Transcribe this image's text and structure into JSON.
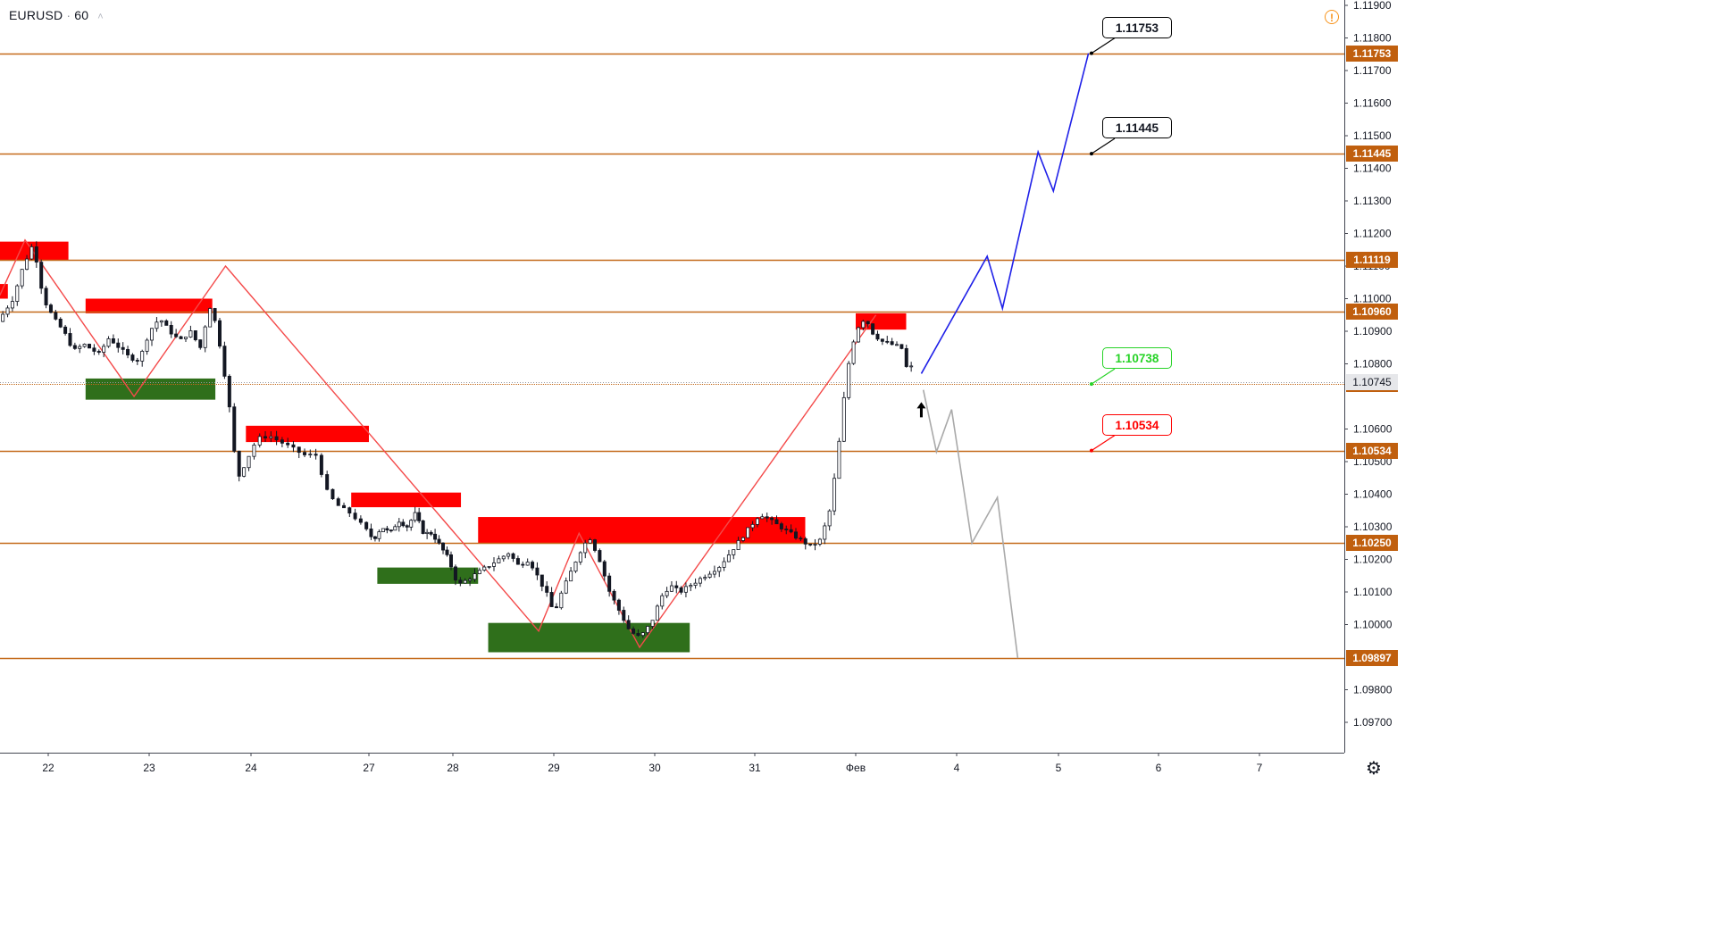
{
  "header": {
    "symbol": "EURUSD",
    "separator": "·",
    "interval": "60",
    "collapse_glyph": "˄"
  },
  "icons": {
    "alert": "alert-circle-icon",
    "settings": "gear-icon"
  },
  "colors": {
    "level_line": "#c46a1a",
    "level_tag_bg": "#c05f0e",
    "supply_zone": "#ff0000",
    "demand_zone": "#2f6f1b",
    "zigzag": "#f44a4a",
    "bull_projection": "#1f20e8",
    "bear_projection": "#a9a9a9",
    "candle": "#131722"
  },
  "chart_data": {
    "type": "candlestick",
    "symbol": "EURUSD",
    "interval": "60",
    "y_axis": {
      "range": [
        1.09665,
        1.11915
      ],
      "ticks": [
        "1.11900",
        "1.11800",
        "1.11700",
        "1.11600",
        "1.11500",
        "1.11400",
        "1.11300",
        "1.11200",
        "1.11100",
        "1.11000",
        "1.10900",
        "1.10800",
        "1.10600",
        "1.10500",
        "1.10400",
        "1.10300",
        "1.10200",
        "1.10100",
        "1.10000",
        "1.09800",
        "1.09700"
      ]
    },
    "x_axis": {
      "ticks": [
        {
          "label": "22",
          "day": 0
        },
        {
          "label": "23",
          "day": 1
        },
        {
          "label": "24",
          "day": 2
        },
        {
          "label": "27",
          "day": 3
        },
        {
          "label": "28",
          "day": 4
        },
        {
          "label": "29",
          "day": 5
        },
        {
          "label": "30",
          "day": 6
        },
        {
          "label": "31",
          "day": 7
        },
        {
          "label": "Фев",
          "day": 8
        },
        {
          "label": "4",
          "day": 9
        },
        {
          "label": "5",
          "day": 10
        },
        {
          "label": "6",
          "day": 11
        },
        {
          "label": "7",
          "day": 12
        }
      ]
    },
    "price_path": [
      [
        -0.45,
        1.1093
      ],
      [
        -0.3,
        1.11
      ],
      [
        -0.2,
        1.111
      ],
      [
        -0.1,
        1.1117
      ],
      [
        0,
        1.11
      ],
      [
        0.1,
        1.1094
      ],
      [
        0.2,
        1.109
      ],
      [
        0.3,
        1.1084
      ],
      [
        0.4,
        1.1086
      ],
      [
        0.55,
        1.1083
      ],
      [
        0.65,
        1.1088
      ],
      [
        0.75,
        1.1085
      ],
      [
        0.85,
        1.1082
      ],
      [
        0.95,
        1.1081
      ],
      [
        1.05,
        1.109
      ],
      [
        1.15,
        1.1094
      ],
      [
        1.25,
        1.109
      ],
      [
        1.35,
        1.1087
      ],
      [
        1.45,
        1.109
      ],
      [
        1.55,
        1.1085
      ],
      [
        1.6,
        1.1092
      ],
      [
        1.65,
        1.1098
      ],
      [
        1.72,
        1.109
      ],
      [
        1.78,
        1.1078
      ],
      [
        1.82,
        1.1072
      ],
      [
        1.86,
        1.1058
      ],
      [
        1.92,
        1.1045
      ],
      [
        2.0,
        1.105
      ],
      [
        2.1,
        1.1057
      ],
      [
        2.2,
        1.1058
      ],
      [
        2.3,
        1.1056
      ],
      [
        2.4,
        1.1054
      ],
      [
        2.5,
        1.1052
      ],
      [
        2.6,
        1.1052
      ],
      [
        2.7,
        1.104
      ],
      [
        2.8,
        1.1036
      ],
      [
        2.9,
        1.1034
      ],
      [
        3.0,
        1.103
      ],
      [
        3.1,
        1.1026
      ],
      [
        3.2,
        1.103
      ],
      [
        3.3,
        1.1028
      ],
      [
        3.4,
        1.1032
      ],
      [
        3.5,
        1.103
      ],
      [
        3.6,
        1.1034
      ],
      [
        3.7,
        1.1028
      ],
      [
        3.8,
        1.1028
      ],
      [
        3.9,
        1.1024
      ],
      [
        4.0,
        1.102
      ],
      [
        4.05,
        1.1016
      ],
      [
        4.1,
        1.1012
      ],
      [
        4.2,
        1.1014
      ],
      [
        4.3,
        1.1016
      ],
      [
        4.4,
        1.1018
      ],
      [
        4.5,
        1.102
      ],
      [
        4.6,
        1.1022
      ],
      [
        4.7,
        1.1018
      ],
      [
        4.8,
        1.102
      ],
      [
        4.9,
        1.1014
      ],
      [
        5.0,
        1.1008
      ],
      [
        5.05,
        1.1003
      ],
      [
        5.1,
        1.1008
      ],
      [
        5.2,
        1.1015
      ],
      [
        5.3,
        1.1022
      ],
      [
        5.4,
        1.1027
      ],
      [
        5.5,
        1.102
      ],
      [
        5.6,
        1.101
      ],
      [
        5.7,
        1.1004
      ],
      [
        5.8,
        1.0998
      ],
      [
        5.9,
        1.0996
      ],
      [
        6.0,
        1.1
      ],
      [
        6.05,
        1.1003
      ],
      [
        6.1,
        1.1008
      ],
      [
        6.2,
        1.1012
      ],
      [
        6.3,
        1.101
      ],
      [
        6.4,
        1.1012
      ],
      [
        6.5,
        1.1014
      ],
      [
        6.6,
        1.1016
      ],
      [
        6.7,
        1.1018
      ],
      [
        6.8,
        1.1022
      ],
      [
        6.9,
        1.1026
      ],
      [
        7.0,
        1.103
      ],
      [
        7.1,
        1.1034
      ],
      [
        7.2,
        1.1032
      ],
      [
        7.3,
        1.103
      ],
      [
        7.4,
        1.1028
      ],
      [
        7.5,
        1.1026
      ],
      [
        7.6,
        1.1024
      ],
      [
        7.7,
        1.1026
      ],
      [
        7.8,
        1.1036
      ],
      [
        7.85,
        1.1048
      ],
      [
        7.9,
        1.106
      ],
      [
        7.95,
        1.1075
      ],
      [
        8.0,
        1.1084
      ],
      [
        8.05,
        1.109
      ],
      [
        8.1,
        1.1093
      ],
      [
        8.15,
        1.1094
      ],
      [
        8.2,
        1.109
      ],
      [
        8.3,
        1.1087
      ],
      [
        8.4,
        1.1086
      ],
      [
        8.5,
        1.1085
      ],
      [
        8.55,
        1.1079
      ]
    ],
    "horizontal_levels": [
      {
        "price": 1.11753,
        "label": "1.11753"
      },
      {
        "price": 1.11445,
        "label": "1.11445"
      },
      {
        "price": 1.11119,
        "label": "1.11119"
      },
      {
        "price": 1.1096,
        "label": "1.10960"
      },
      {
        "price": 1.10738,
        "label": "1.10738"
      },
      {
        "price": 1.10534,
        "label": "1.10534"
      },
      {
        "price": 1.1025,
        "label": "1.10250"
      },
      {
        "price": 1.09897,
        "label": "1.09897"
      }
    ],
    "current_price": {
      "price": 1.10745,
      "label": "1.10745"
    },
    "supply_zones": [
      {
        "day_from": -0.48,
        "day_to": 0.2,
        "price_from": 1.11117,
        "price_to": 1.11175
      },
      {
        "day_from": -0.48,
        "day_to": -0.4,
        "price_from": 1.11,
        "price_to": 1.11045
      },
      {
        "day_from": 0.37,
        "day_to": 1.62,
        "price_from": 1.10955,
        "price_to": 1.11
      },
      {
        "day_from": 1.95,
        "day_to": 3.0,
        "price_from": 1.1056,
        "price_to": 1.1061
      },
      {
        "day_from": 2.85,
        "day_to": 4.08,
        "price_from": 1.1036,
        "price_to": 1.10405
      },
      {
        "day_from": 4.25,
        "day_to": 7.5,
        "price_from": 1.1025,
        "price_to": 1.1033
      },
      {
        "day_from": 8.0,
        "day_to": 8.5,
        "price_from": 1.10905,
        "price_to": 1.10955
      }
    ],
    "demand_zones": [
      {
        "day_from": 0.37,
        "day_to": 1.65,
        "price_from": 1.1069,
        "price_to": 1.10755
      },
      {
        "day_from": 3.1,
        "day_to": 4.25,
        "price_from": 1.10125,
        "price_to": 1.10175
      },
      {
        "day_from": 4.35,
        "day_to": 6.35,
        "price_from": 1.09915,
        "price_to": 1.10005
      }
    ],
    "zigzag": [
      [
        -0.48,
        1.1101
      ],
      [
        -0.23,
        1.1118
      ],
      [
        0.85,
        1.107
      ],
      [
        1.75,
        1.111
      ],
      [
        4.85,
        1.0998
      ],
      [
        5.25,
        1.1028
      ],
      [
        5.85,
        1.0993
      ],
      [
        8.2,
        1.1095
      ]
    ],
    "projections": [
      {
        "direction": "up",
        "points": [
          [
            8.65,
            1.1077
          ],
          [
            9.3,
            1.1113
          ],
          [
            9.45,
            1.1097
          ],
          [
            9.8,
            1.1145
          ],
          [
            9.95,
            1.1133
          ],
          [
            10.3,
            1.11753
          ]
        ]
      },
      {
        "direction": "down",
        "points": [
          [
            8.67,
            1.1072
          ],
          [
            8.8,
            1.1053
          ],
          [
            8.95,
            1.1066
          ],
          [
            9.15,
            1.1025
          ],
          [
            9.4,
            1.1039
          ],
          [
            9.6,
            1.09897
          ]
        ]
      }
    ],
    "callouts": [
      {
        "label": "1.11753",
        "price": 1.11753,
        "color": "#000000",
        "day": 10.33
      },
      {
        "label": "1.11445",
        "price": 1.11445,
        "color": "#000000",
        "day": 10.33
      },
      {
        "label": "1.10738",
        "price": 1.10738,
        "color": "#27d327",
        "day": 10.33
      },
      {
        "label": "1.10534",
        "price": 1.10534,
        "color": "#ff0000",
        "day": 10.33
      }
    ],
    "marker": {
      "type": "up-arrow",
      "day": 8.65,
      "price": 1.10655
    }
  }
}
